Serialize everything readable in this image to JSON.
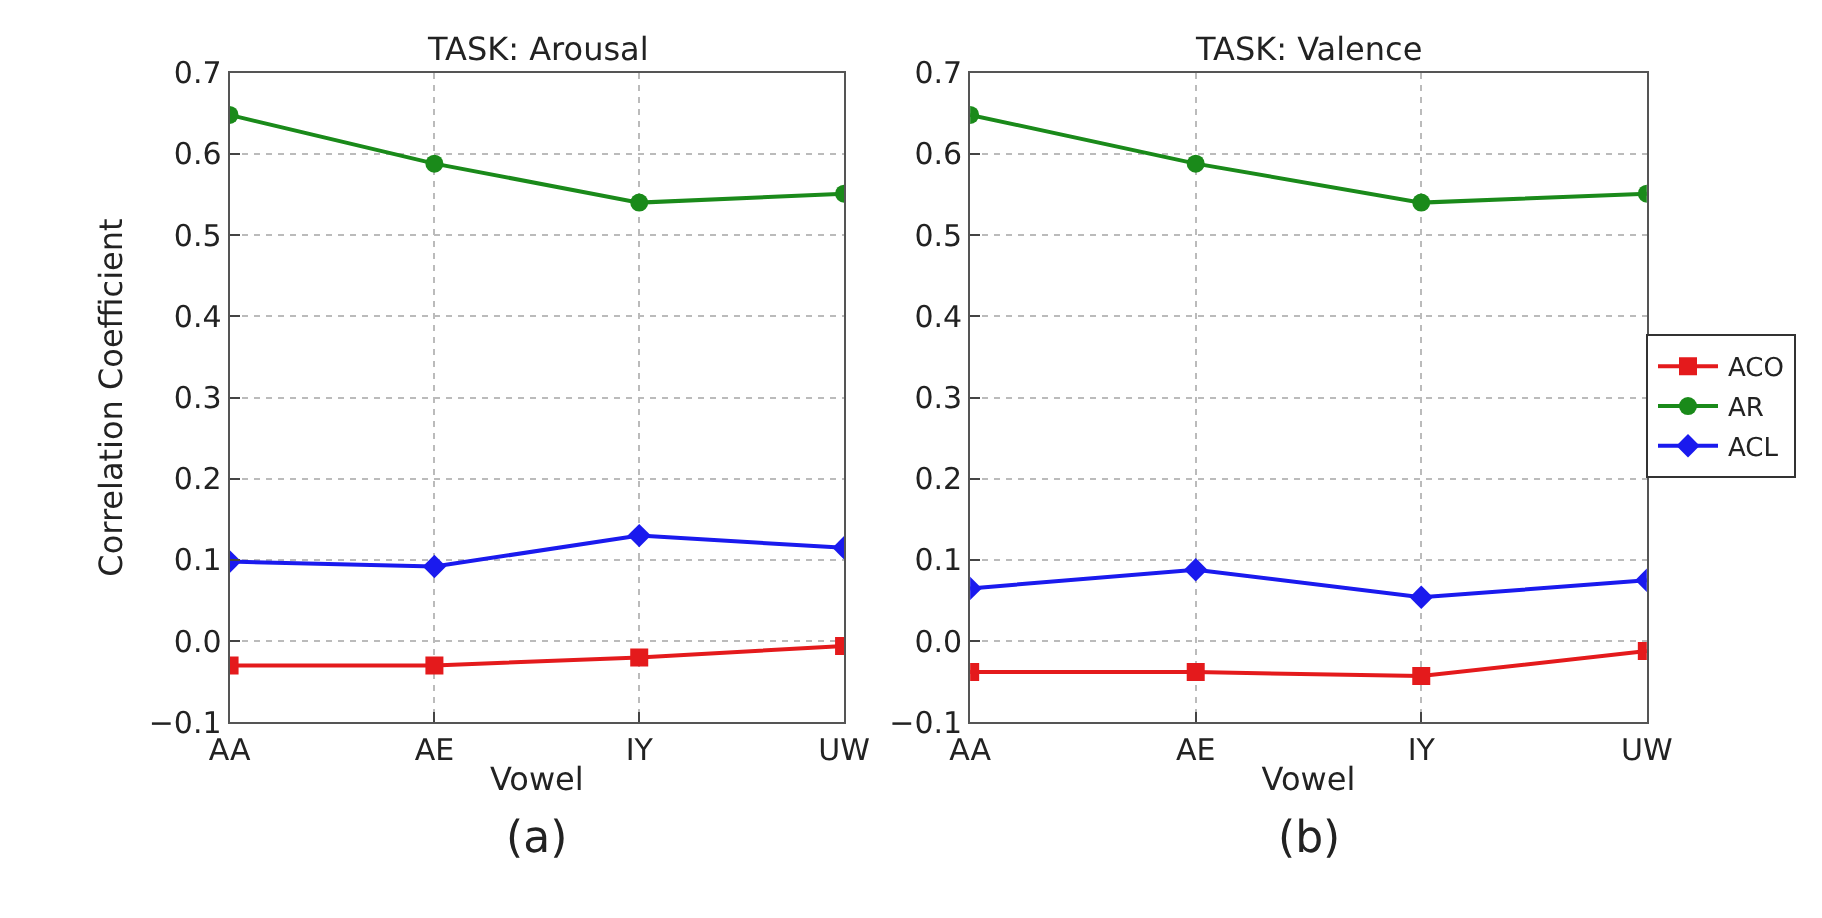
{
  "chart_data": [
    {
      "type": "line",
      "title": "TASK: Arousal",
      "xlabel": "Vowel",
      "ylabel": "Correlation Coefficient",
      "categories": [
        "AA",
        "AE",
        "IY",
        "UW"
      ],
      "series": [
        {
          "color": "#e41a1c",
          "marker": "square",
          "values": [
            -0.03,
            -0.03,
            -0.02,
            -0.006
          ]
        },
        {
          "color": "#1a8a1a",
          "marker": "circle",
          "values": [
            0.648,
            0.588,
            0.54,
            0.551
          ]
        },
        {
          "color": "#1a1aee",
          "marker": "diamond",
          "values": [
            0.098,
            0.092,
            0.13,
            0.115
          ]
        }
      ],
      "ylim": [
        -0.1,
        0.7
      ],
      "yticks": [
        -0.1,
        {
          "value": 0,
          "label": "0.0"
        },
        0.1,
        0.2,
        0.3,
        0.4,
        0.5,
        0.6,
        0.7
      ],
      "grid": true,
      "line_style": "solid",
      "annotations": [
        "(a)"
      ]
    },
    {
      "type": "line",
      "title": "TASK: Valence",
      "xlabel": "Vowel",
      "categories": [
        "AA",
        "AE",
        "IY",
        "UW"
      ],
      "series": [
        {
          "name": "ACO",
          "color": "#e41a1c",
          "marker": "square",
          "values": [
            -0.038,
            -0.038,
            -0.043,
            -0.012
          ]
        },
        {
          "name": "AR",
          "color": "#1a8a1a",
          "marker": "circle",
          "values": [
            0.648,
            0.588,
            0.54,
            0.551
          ]
        },
        {
          "name": "ACL",
          "color": "#1a1aee",
          "marker": "diamond",
          "values": [
            0.065,
            0.088,
            0.054,
            0.075
          ]
        }
      ],
      "ylim": [
        -0.1,
        0.7
      ],
      "yticks": [
        -0.1,
        {
          "value": 0,
          "label": "0.0"
        },
        0.1,
        0.2,
        0.3,
        0.4,
        0.5,
        0.6,
        0.7
      ],
      "grid": true,
      "legend": "right",
      "line_style": "solid",
      "annotations": [
        "(b)"
      ]
    }
  ]
}
